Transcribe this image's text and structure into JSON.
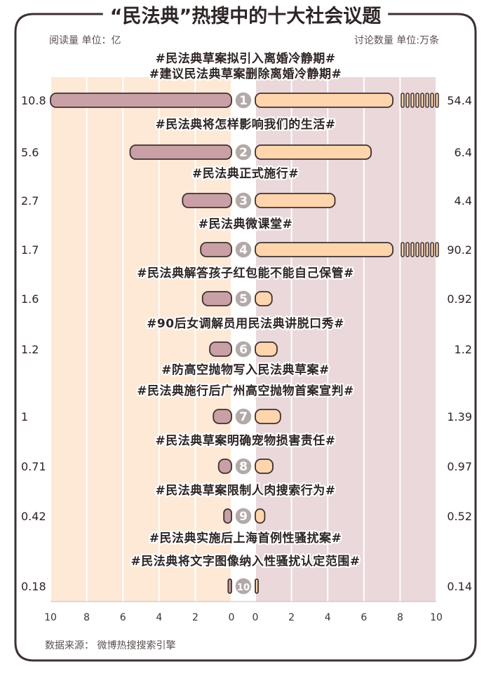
{
  "title": "“民法典”热搜中的十大社会议题",
  "left_unit": "阅读量  单位：亿",
  "right_unit": "讨论数量  单位:万条",
  "source": "数据来源：  微博热搜搜索引擎",
  "colors": {
    "left_bar": "#c9a0a5",
    "right_bar": "#ffd5ad",
    "left_band": "#fde9d6",
    "right_band": "#ead8da",
    "outline": "#3d3131",
    "circle": "#b3aaa8"
  },
  "chart_data": {
    "type": "bar",
    "layout": "diverging",
    "left_axis": {
      "ticks": [
        "10",
        "8",
        "6",
        "4",
        "2",
        "0"
      ],
      "range": [
        0,
        10
      ],
      "direction": "reversed"
    },
    "right_axis": {
      "ticks": [
        "0",
        "2",
        "4",
        "6",
        "8",
        "10"
      ],
      "range": [
        0,
        10
      ]
    },
    "topics": [
      {
        "rank": "1",
        "labels": [
          "#民法典草案拟引入离婚冷静期#",
          "#建议民法典草案删除离婚冷静期#"
        ],
        "reads": 10.8,
        "reads_text": "10.8",
        "discussions": 54.4,
        "discussions_text": "54.4"
      },
      {
        "rank": "2",
        "labels": [
          "#民法典将怎样影响我们的生活#"
        ],
        "reads": 5.6,
        "reads_text": "5.6",
        "discussions": 6.4,
        "discussions_text": "6.4"
      },
      {
        "rank": "3",
        "labels": [
          "#民法典正式施行#"
        ],
        "reads": 2.7,
        "reads_text": "2.7",
        "discussions": 4.4,
        "discussions_text": "4.4"
      },
      {
        "rank": "4",
        "labels": [
          "#民法典微课堂#"
        ],
        "reads": 1.7,
        "reads_text": "1.7",
        "discussions": 90.2,
        "discussions_text": "90.2"
      },
      {
        "rank": "5",
        "labels": [
          "#民法典解答孩子红包能不能自己保管#"
        ],
        "reads": 1.6,
        "reads_text": "1.6",
        "discussions": 0.92,
        "discussions_text": "0.92"
      },
      {
        "rank": "6",
        "labels": [
          "#90后女调解员用民法典讲脱口秀#"
        ],
        "reads": 1.2,
        "reads_text": "1.2",
        "discussions": 1.2,
        "discussions_text": "1.2"
      },
      {
        "rank": "7",
        "labels": [
          "#防高空抛物写入民法典草案#",
          "#民法典施行后广州高空抛物首案宣判#"
        ],
        "reads": 1,
        "reads_text": "1",
        "discussions": 1.39,
        "discussions_text": "1.39"
      },
      {
        "rank": "8",
        "labels": [
          "#民法典草案明确宠物损害责任#"
        ],
        "reads": 0.71,
        "reads_text": "0.71",
        "discussions": 0.97,
        "discussions_text": "0.97"
      },
      {
        "rank": "9",
        "labels": [
          "#民法典草案限制人肉搜索行为#"
        ],
        "reads": 0.42,
        "reads_text": "0.42",
        "discussions": 0.52,
        "discussions_text": "0.52"
      },
      {
        "rank": "10",
        "labels": [
          "#民法典实施后上海首例性骚扰案#",
          "#民法典将文字图像纳入性骚扰认定范围#"
        ],
        "reads": 0.18,
        "reads_text": "0.18",
        "discussions": 0.14,
        "discussions_text": "0.14"
      }
    ]
  }
}
